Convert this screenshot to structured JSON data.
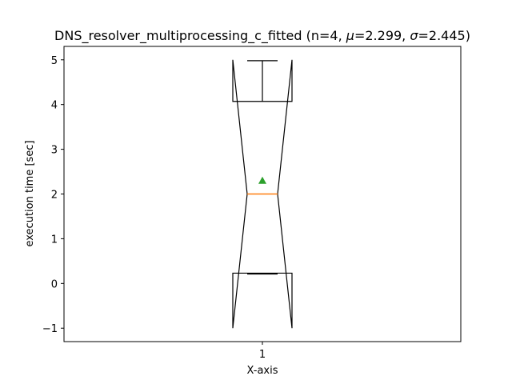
{
  "chart_data": {
    "type": "boxplot",
    "title": {
      "prefix": "DNS_resolver_multiprocessing_c_fitted (n=4, ",
      "mu_symbol": "μ",
      "mu_value": "=2.299, ",
      "sigma_symbol": "σ",
      "sigma_value": "=2.445)"
    },
    "xlabel": "X-axis",
    "ylabel": "execution time [sec]",
    "ylim": [
      -1.3,
      5.3
    ],
    "yticks": [
      -1,
      0,
      1,
      2,
      3,
      4,
      5
    ],
    "ytick_labels": [
      "−1",
      "0",
      "1",
      "2",
      "3",
      "4",
      "5"
    ],
    "categories": [
      "1"
    ],
    "box": {
      "position": 1,
      "q1": 0.23,
      "median": 2.0,
      "q3": 4.07,
      "whisker_low": 0.21,
      "whisker_high": 4.98,
      "notch_low": -1.0,
      "notch_high": 5.0,
      "mean": 2.299
    },
    "colors": {
      "median": "#ff7f0e",
      "mean": "#2ca02c",
      "box": "#000000"
    }
  }
}
